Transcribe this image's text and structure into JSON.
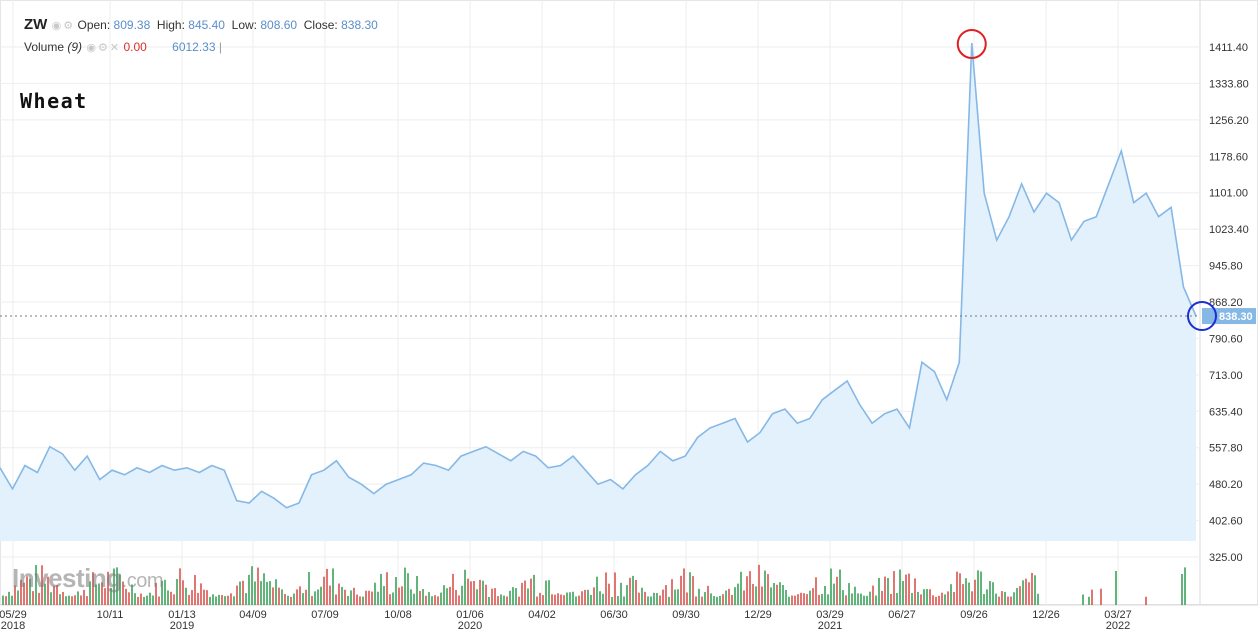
{
  "header": {
    "symbol": "ZW",
    "open_label": "Open:",
    "open_value": "809.38",
    "high_label": "High:",
    "high_value": "845.40",
    "low_label": "Low:",
    "low_value": "808.60",
    "close_label": "Close:",
    "close_value": "838.30",
    "volume_label": "Volume",
    "volume_period": "(9)",
    "volume_value": "0.00",
    "volume_value2": "6012.33"
  },
  "annotation_label": "Wheat",
  "watermark": {
    "main": "Investing",
    "suffix": ".com"
  },
  "colors": {
    "line": "#86b8e6",
    "fill": "#e3f1fd",
    "grid": "#eeeeee",
    "peak_circle": "#e02020",
    "last_circle": "#1c2fd1",
    "vol_up": "#3aa35a",
    "vol_down": "#d9534f"
  },
  "chart_data": {
    "type": "area",
    "title": "",
    "xlabel": "",
    "ylabel": "",
    "ylim": [
      355,
      1430
    ],
    "yticks": [
      "1411.40",
      "1333.80",
      "1256.20",
      "1178.60",
      "1101.00",
      "1023.40",
      "945.80",
      "868.20",
      "790.60",
      "713.00",
      "635.40",
      "557.80",
      "480.20",
      "402.60",
      "325.00"
    ],
    "x_ticks": [
      {
        "label": "05/29",
        "sub": "2018"
      },
      {
        "label": "10/11",
        "sub": ""
      },
      {
        "label": "01/13",
        "sub": "2019"
      },
      {
        "label": "04/09",
        "sub": ""
      },
      {
        "label": "07/09",
        "sub": ""
      },
      {
        "label": "10/08",
        "sub": ""
      },
      {
        "label": "01/06",
        "sub": "2020"
      },
      {
        "label": "04/02",
        "sub": ""
      },
      {
        "label": "06/30",
        "sub": ""
      },
      {
        "label": "09/30",
        "sub": ""
      },
      {
        "label": "12/29",
        "sub": ""
      },
      {
        "label": "03/29",
        "sub": "2021"
      },
      {
        "label": "06/27",
        "sub": ""
      },
      {
        "label": "09/26",
        "sub": ""
      },
      {
        "label": "12/26",
        "sub": ""
      },
      {
        "label": "03/27",
        "sub": "2022"
      }
    ],
    "last_price": 838.3,
    "last_price_label": "838.30",
    "peak": {
      "index": 78,
      "value": 1420
    },
    "series": [
      {
        "values": [
          515,
          470,
          520,
          505,
          560,
          545,
          510,
          540,
          490,
          510,
          500,
          515,
          505,
          520,
          510,
          515,
          505,
          520,
          510,
          445,
          440,
          465,
          450,
          430,
          440,
          500,
          510,
          530,
          495,
          480,
          460,
          480,
          490,
          500,
          525,
          520,
          510,
          540,
          550,
          560,
          545,
          530,
          550,
          540,
          515,
          520,
          540,
          510,
          480,
          490,
          470,
          500,
          520,
          550,
          530,
          540,
          580,
          600,
          610,
          620,
          570,
          590,
          630,
          640,
          610,
          620,
          660,
          680,
          700,
          650,
          610,
          630,
          640,
          600,
          740,
          720,
          660,
          740,
          1420,
          1100,
          1000,
          1050,
          1120,
          1060,
          1100,
          1080,
          1000,
          1040,
          1050,
          1120,
          1190,
          1080,
          1100,
          1050,
          1070,
          900,
          838.3
        ]
      }
    ]
  }
}
